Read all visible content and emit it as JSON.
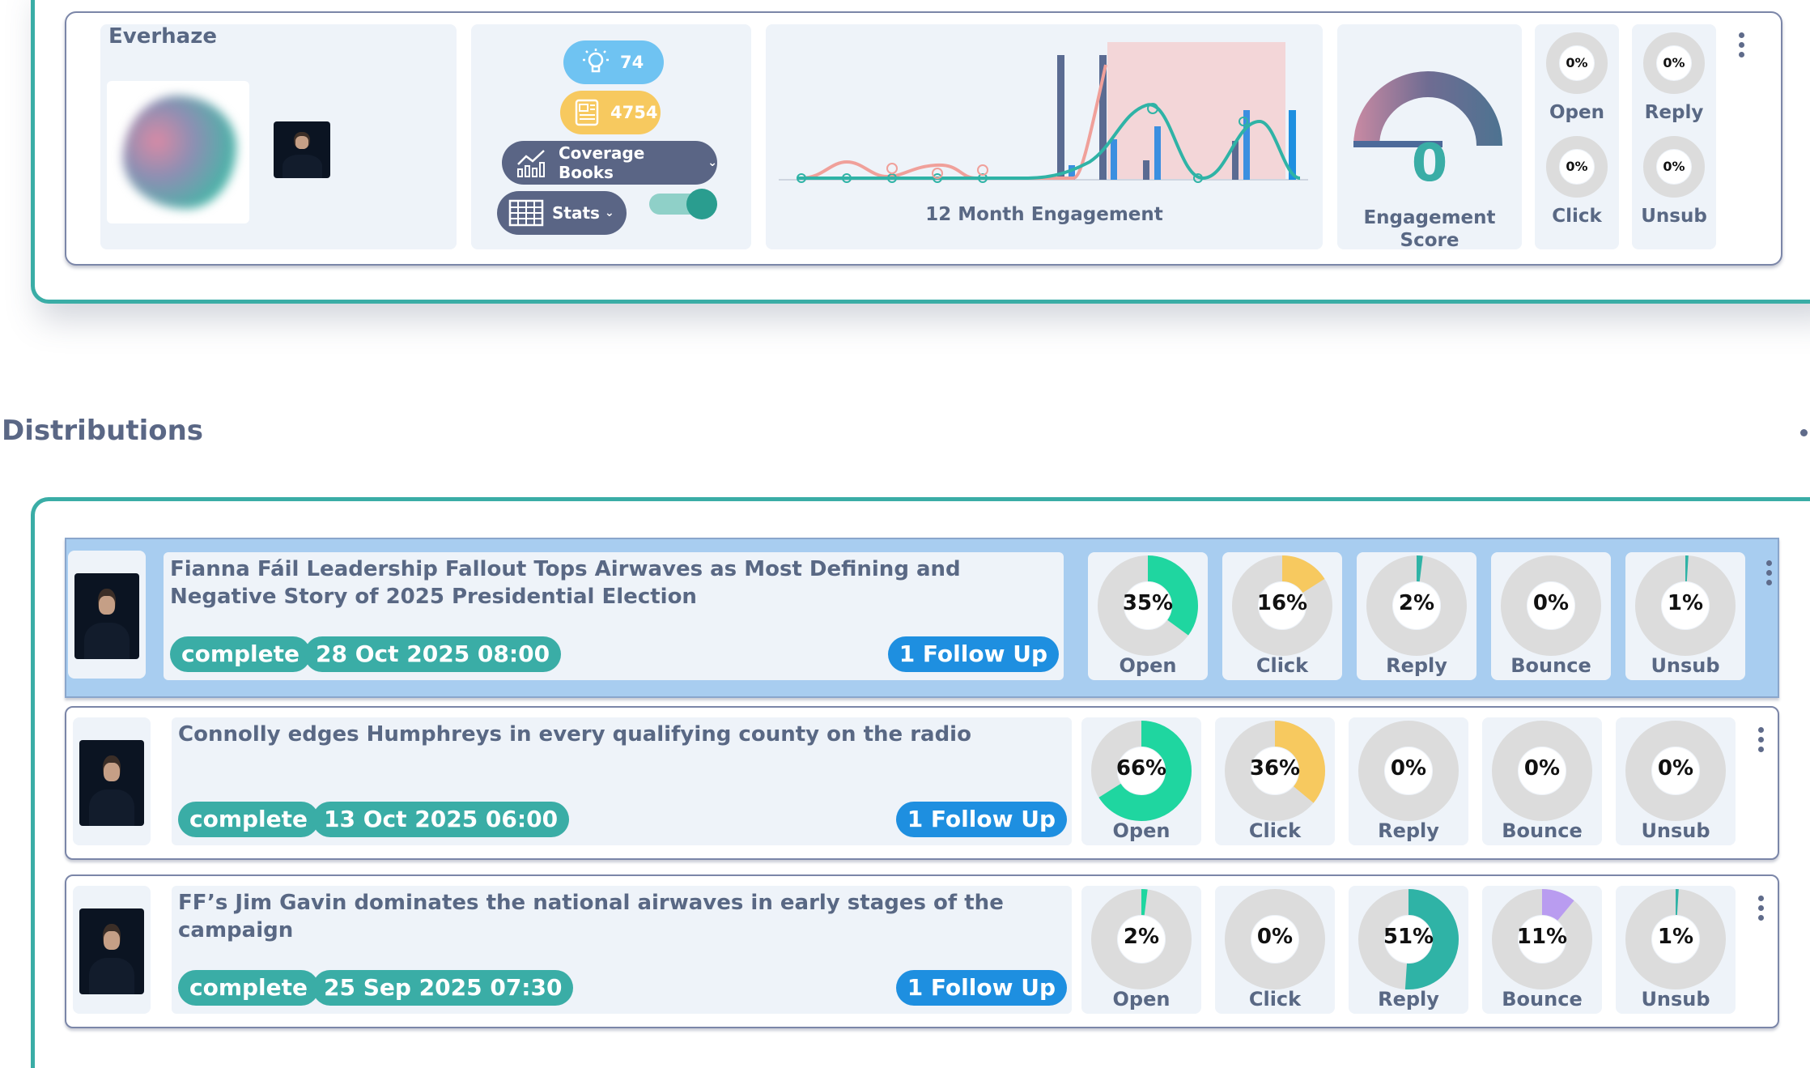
{
  "profile": {
    "name": "Everhaze",
    "badges": {
      "ideas": "74",
      "articles": "4754"
    },
    "coverage_books_label": "Coverage Books",
    "stats_label": "Stats",
    "chart_label": "12 Month Engagement",
    "score_value": "0",
    "score_label_line1": "Engagement",
    "score_label_line2": "Score",
    "mini_stats": [
      {
        "pct": "0%",
        "label": "Open"
      },
      {
        "pct": "0%",
        "label": "Reply"
      },
      {
        "pct": "0%",
        "label": "Click"
      },
      {
        "pct": "0%",
        "label": "Unsub"
      }
    ]
  },
  "section_title": "Distributions",
  "distributions": [
    {
      "title": "Fianna Fáil Leadership Fallout Tops Airwaves as Most Defining and Negative Story of 2025 Presidential Election",
      "status": "complete",
      "date": "28 Oct 2025 08:00",
      "follow_up": "1 Follow Up",
      "stats": [
        {
          "label": "Open",
          "pct": "35%",
          "value": 35
        },
        {
          "label": "Click",
          "pct": "16%",
          "value": 16
        },
        {
          "label": "Reply",
          "pct": "2%",
          "value": 2
        },
        {
          "label": "Bounce",
          "pct": "0%",
          "value": 0
        },
        {
          "label": "Unsub",
          "pct": "1%",
          "value": 1
        }
      ]
    },
    {
      "title": "Connolly edges Humphreys in every qualifying county on the radio",
      "status": "complete",
      "date": "13 Oct 2025 06:00",
      "follow_up": "1 Follow Up",
      "stats": [
        {
          "label": "Open",
          "pct": "66%",
          "value": 66
        },
        {
          "label": "Click",
          "pct": "36%",
          "value": 36
        },
        {
          "label": "Reply",
          "pct": "0%",
          "value": 0
        },
        {
          "label": "Bounce",
          "pct": "0%",
          "value": 0
        },
        {
          "label": "Unsub",
          "pct": "0%",
          "value": 0
        }
      ]
    },
    {
      "title": "FF’s Jim Gavin dominates the national airwaves in early stages of the campaign",
      "status": "complete",
      "date": "25 Sep 2025 07:30",
      "follow_up": "1 Follow Up",
      "stats": [
        {
          "label": "Open",
          "pct": "2%",
          "value": 2
        },
        {
          "label": "Click",
          "pct": "0%",
          "value": 0
        },
        {
          "label": "Reply",
          "pct": "51%",
          "value": 51
        },
        {
          "label": "Bounce",
          "pct": "11%",
          "value": 11
        },
        {
          "label": "Unsub",
          "pct": "1%",
          "value": 1
        }
      ]
    }
  ],
  "colors": {
    "Open": "#1fd6a0",
    "Click": "#f7c95f",
    "Reply": "#2fb3a6",
    "Bounce": "#b99cf0",
    "Unsub": "#2fb3a6",
    "track": "#dcdcdc"
  }
}
